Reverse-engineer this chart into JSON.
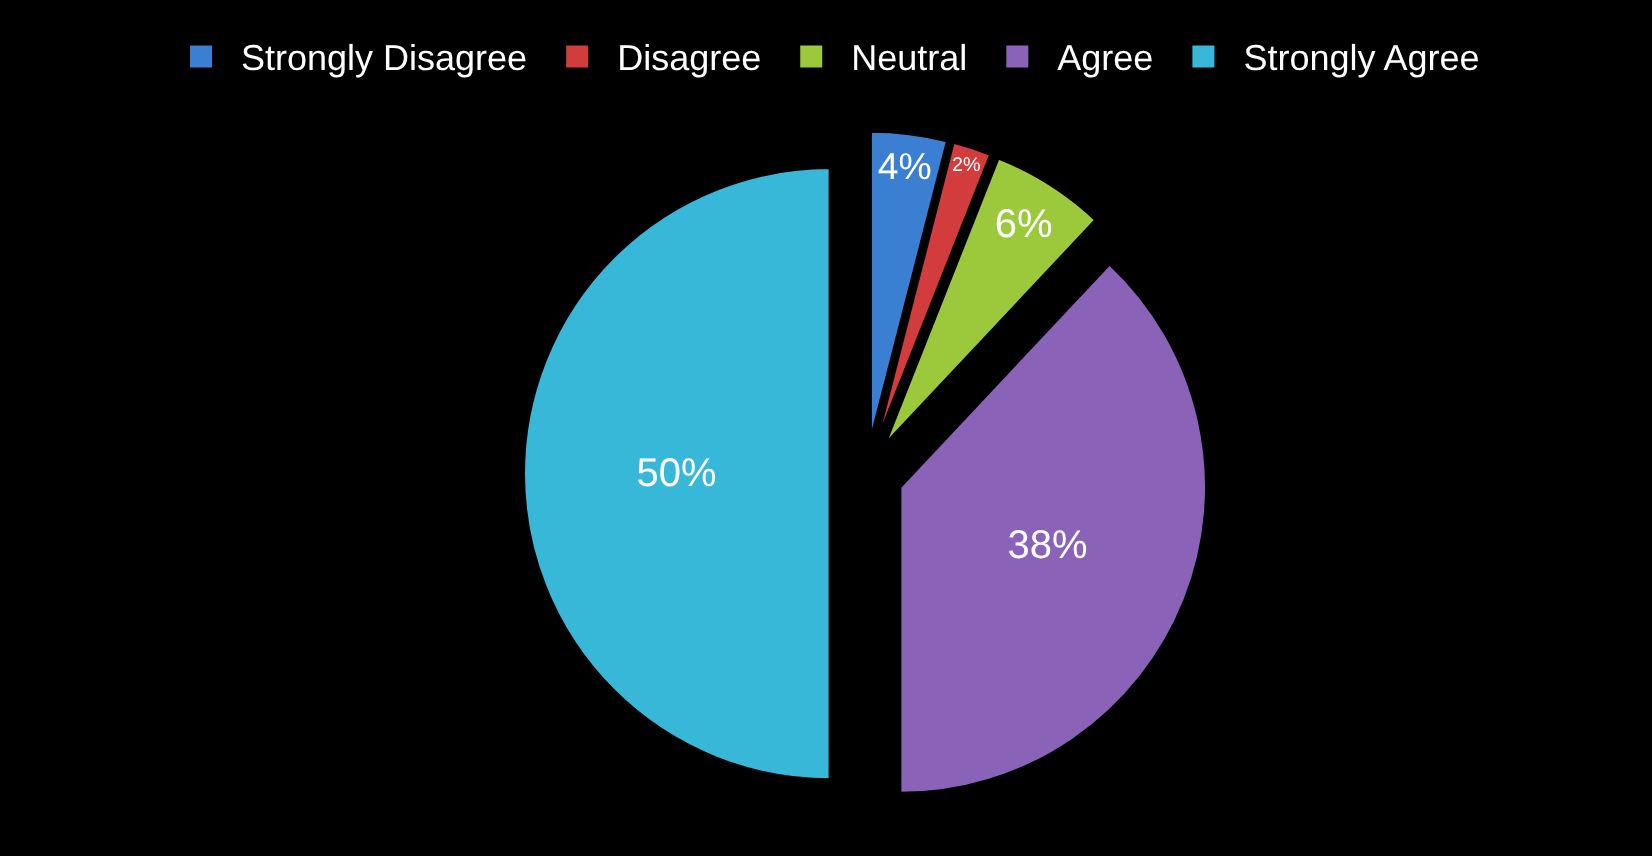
{
  "chart_data": {
    "type": "pie",
    "categories": [
      "Strongly Disagree",
      "Disagree",
      "Neutral",
      "Agree",
      "Strongly Agree"
    ],
    "values": [
      4,
      2,
      6,
      38,
      50
    ],
    "colors": [
      "#3b7fd2",
      "#d23c3c",
      "#9cc93c",
      "#8a62b8",
      "#38b8d8"
    ],
    "value_labels": [
      "4%",
      "2%",
      "6%",
      "38%",
      "50%"
    ],
    "legend": "top"
  }
}
